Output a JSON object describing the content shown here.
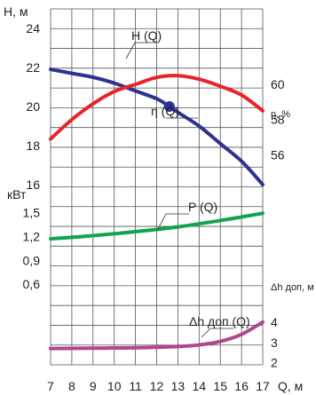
{
  "chart_data": {
    "type": "line",
    "x_axis": {
      "label": "Q, м",
      "range": [
        7,
        17
      ],
      "ticks": [
        "7",
        "8",
        "9",
        "10",
        "11",
        "12",
        "13",
        "14",
        "15",
        "16",
        "17"
      ]
    },
    "panels": [
      {
        "id": "head",
        "left_axis": {
          "label": "H, м",
          "range": [
            16,
            25
          ],
          "ticks": [
            "16",
            "18",
            "20",
            "22",
            "24"
          ]
        },
        "right_axis": {
          "label": "η, %",
          "range": [
            54.3,
            64.3
          ],
          "ticks": [
            "56",
            "58",
            "60"
          ]
        },
        "series": [
          {
            "name": "H (Q)",
            "axis": "left",
            "color": "#2e3192",
            "x": [
              7,
              8,
              9,
              10,
              11,
              12,
              12.6,
              13,
              14,
              15,
              16,
              17
            ],
            "y": [
              21.9,
              21.7,
              21.5,
              21.2,
              20.8,
              20.4,
              20.0,
              19.7,
              19.0,
              18.1,
              17.2,
              16.0
            ],
            "marker": {
              "x": 12.6,
              "y": 20.0
            }
          },
          {
            "name": "η (Q)",
            "axis": "right",
            "color": "#e8232a",
            "x": [
              7,
              8,
              9,
              10,
              11,
              12,
              13,
              14,
              15,
              16,
              17
            ],
            "y": [
              56.9,
              58.0,
              58.9,
              59.6,
              60.0,
              60.4,
              60.5,
              60.3,
              59.9,
              59.4,
              58.5
            ]
          }
        ]
      },
      {
        "id": "power",
        "left_axis": {
          "label": "кВт",
          "range": [
            0.38,
            1.85
          ],
          "ticks": [
            "0,6",
            "0,9",
            "1,2",
            "1,5"
          ]
        },
        "series": [
          {
            "name": "P (Q)",
            "axis": "left",
            "color": "#10a450",
            "x": [
              7,
              9,
              11,
              13,
              15,
              17
            ],
            "y": [
              1.17,
              1.21,
              1.26,
              1.32,
              1.4,
              1.49
            ]
          }
        ]
      },
      {
        "id": "npsh",
        "right_axis": {
          "label": "Δh доп, м",
          "range": [
            1.9,
            5.0
          ],
          "ticks": [
            "2",
            "3",
            "4"
          ]
        },
        "series": [
          {
            "name": "Δh доп (Q)",
            "axis": "right",
            "color": "#b0468c",
            "x": [
              7,
              9,
              11,
              13,
              14,
              15,
              16,
              17
            ],
            "y": [
              2.7,
              2.72,
              2.74,
              2.8,
              2.88,
              3.05,
              3.4,
              4.0
            ]
          }
        ]
      }
    ]
  }
}
